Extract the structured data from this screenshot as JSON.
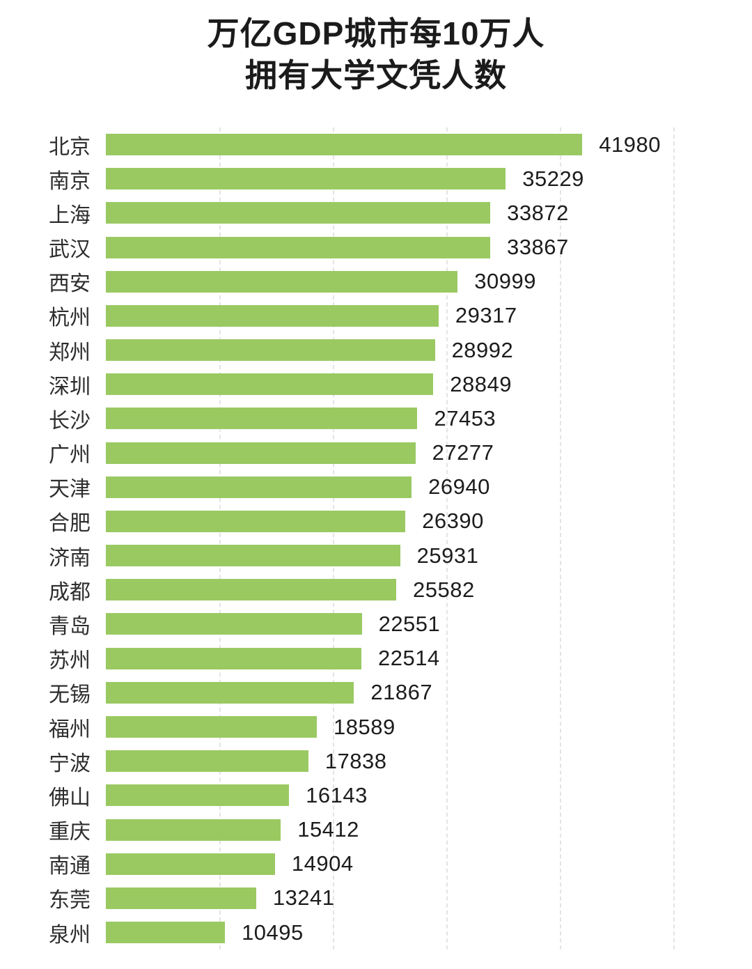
{
  "chart_data": {
    "type": "bar",
    "orientation": "horizontal",
    "title_line1": "万亿GDP城市每10万人",
    "title_line2": "拥有大学文凭人数",
    "categories": [
      "北京",
      "南京",
      "上海",
      "武汉",
      "西安",
      "杭州",
      "郑州",
      "深圳",
      "长沙",
      "广州",
      "天津",
      "合肥",
      "济南",
      "成都",
      "青岛",
      "苏州",
      "无锡",
      "福州",
      "宁波",
      "佛山",
      "重庆",
      "南通",
      "东莞",
      "泉州"
    ],
    "values": [
      41980,
      35229,
      33872,
      33867,
      30999,
      29317,
      28992,
      28849,
      27453,
      27277,
      26940,
      26390,
      25931,
      25582,
      22551,
      22514,
      21867,
      18589,
      17838,
      16143,
      15412,
      14904,
      13241,
      10495
    ],
    "xlim": [
      0,
      50000
    ],
    "gridline_interval": 10000,
    "grid": true,
    "legend": "none",
    "bar_color": "#9ac962",
    "gridline_color": "#e4e4e4",
    "label_color": "#2d2d2d",
    "value_color": "#1c1c1c",
    "title_color": "#1b1b1b",
    "background_color": "#ffffff"
  }
}
